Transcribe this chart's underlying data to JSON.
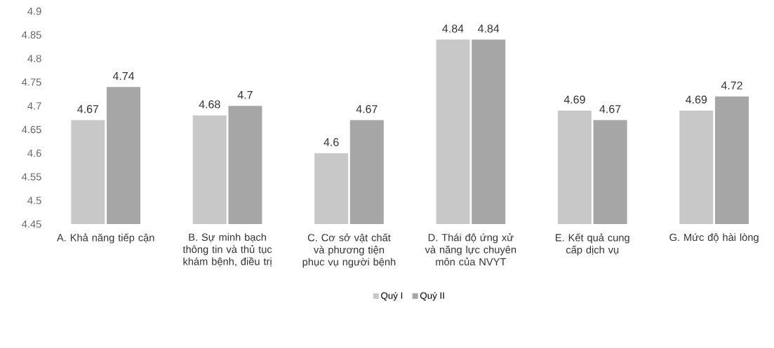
{
  "chart_data": {
    "type": "bar",
    "categories": [
      "A. Khả năng tiếp cận",
      "B. Sự minh bạch thông tin và thủ tục khám bệnh, điều trị",
      "C. Cơ sở vật chất và phương tiện phục vụ người bệnh",
      "D. Thái độ ứng xử và năng lực chuyên môn của NVYT",
      "E. Kết quả cung cấp dịch vụ",
      "G. Mức độ hài lòng"
    ],
    "series": [
      {
        "name": "Quý I",
        "color": "#c8c8c8",
        "values": [
          4.67,
          4.68,
          4.6,
          4.84,
          4.69,
          4.69
        ]
      },
      {
        "name": "Quý II",
        "color": "#a6a6a6",
        "values": [
          4.74,
          4.7,
          4.67,
          4.84,
          4.67,
          4.72
        ]
      }
    ],
    "ylim": [
      4.45,
      4.9
    ],
    "yticks": [
      4.45,
      4.5,
      4.55,
      4.6,
      4.65,
      4.7,
      4.75,
      4.8,
      4.85,
      4.9
    ],
    "data_labels": true,
    "legend": "bottom",
    "grid": false
  }
}
